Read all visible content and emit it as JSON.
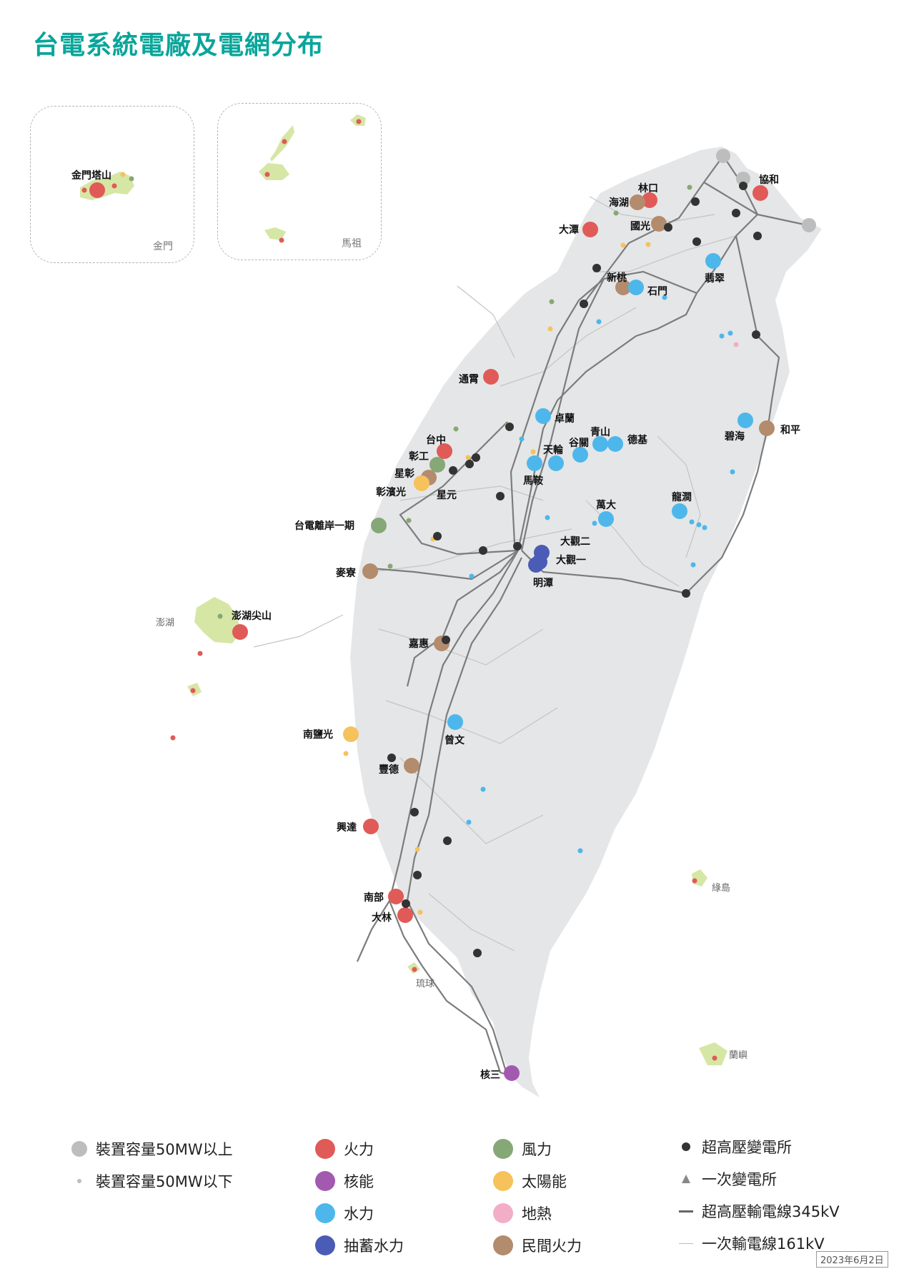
{
  "title": "台電系統電廠及電網分布",
  "colors": {
    "thermal": "#e05a57",
    "nuclear": "#a25ab0",
    "hydro": "#4db7ec",
    "pumped": "#4a5cb5",
    "wind": "#86a877",
    "solar": "#f5c25c",
    "geothermal": "#f2aec6",
    "private": "#b38b6d",
    "large": "#bdbdbd",
    "land": "#e5e6e7",
    "islet": "#d6e6a5",
    "line345": "#777777",
    "line161": "#c4c4c4"
  },
  "insets": {
    "kinmen": "金門",
    "matsu": "馬祖"
  },
  "geo_labels": {
    "penghu": "澎湖",
    "green_island": "綠島",
    "orchid_island": "蘭嶼",
    "liuqiu": "琉球"
  },
  "plants": {
    "kinmen_tashan": "金門塔山",
    "linkou": "林口",
    "xiehe": "協和",
    "haihu": "海湖",
    "guoguang": "國光",
    "datan": "大潭",
    "xintao": "新桃",
    "shimen": "石門",
    "feicui": "翡翠",
    "tongxiao": "通霄",
    "zhuolan": "卓蘭",
    "taichung": "台中",
    "qingshan": "青山",
    "deji": "德基",
    "guguan": "谷關",
    "tianlun": "天輪",
    "changgong": "彰工",
    "xingzhang": "星彰",
    "changbinguang": "彰濱光",
    "xingyuan": "星元",
    "maan": "馬鞍",
    "bihai": "碧海",
    "heping": "和平",
    "wanda": "萬大",
    "longjian": "龍澗",
    "offshore": "台電離岸一期",
    "daguan2": "大觀二",
    "daguan1": "大觀一",
    "mingtan": "明潭",
    "mailiao": "麥寮",
    "penghu_jianshan": "澎湖尖山",
    "jiahui": "嘉惠",
    "zengwen": "曾文",
    "nanyanguang": "南鹽光",
    "fengde": "豐德",
    "xingda": "興達",
    "nanbu": "南部",
    "dalin": "大林",
    "maanshan": "核三"
  },
  "legend": {
    "size_large": "裝置容量50MW以上",
    "size_small": "裝置容量50MW以下",
    "thermal": "火力",
    "nuclear": "核能",
    "hydro": "水力",
    "pumped": "抽蓄水力",
    "wind": "風力",
    "solar": "太陽能",
    "geothermal": "地熱",
    "private": "民間火力",
    "ehv_substation": "超高壓變電所",
    "primary_substation": "一次變電所",
    "line_345": "超高壓輸電線345kV",
    "line_161": "一次輸電線161kV"
  },
  "date": "2023年6月2日"
}
